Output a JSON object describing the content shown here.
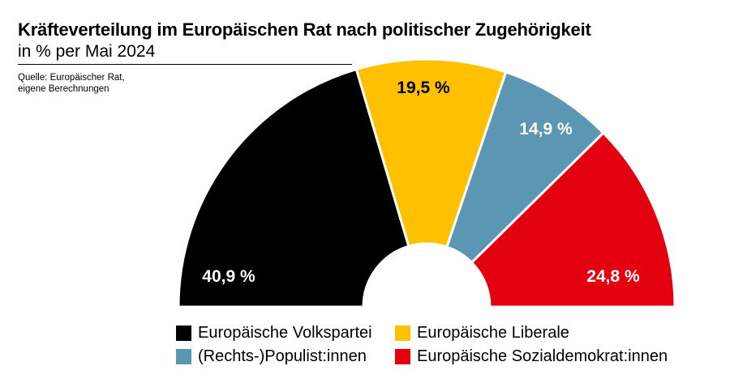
{
  "header": {
    "title": "Kräfteverteilung im Europäischen Rat nach politischer Zugehörigkeit",
    "subtitle": "in % per Mai 2024",
    "source_line1": "Quelle: Europäischer Rat,",
    "source_line2": "eigene Berechnungen"
  },
  "chart_data": {
    "type": "pie",
    "variant": "semicircle",
    "title": "Kräfteverteilung im Europäischen Rat nach politischer Zugehörigkeit",
    "subtitle": "in % per Mai 2024",
    "unit": "%",
    "categories": [
      "Europäische Volkspartei",
      "Europäische Liberale",
      "(Rechts-)Populist:innen",
      "Europäische Sozialdemokrat:innen"
    ],
    "values": [
      40.9,
      19.5,
      14.9,
      24.8
    ],
    "labels": [
      "40,9 %",
      "19,5 %",
      "14,9 %",
      "24,8 %"
    ],
    "colors": [
      "#000000",
      "#ffc000",
      "#5b96b3",
      "#e3000f"
    ],
    "label_colors": [
      "#ffffff",
      "#000000",
      "#ffffff",
      "#ffffff"
    ],
    "legend_position": "bottom"
  },
  "legend": {
    "items": [
      {
        "label": "Europäische Volkspartei",
        "color": "#000000"
      },
      {
        "label": "Europäische Liberale",
        "color": "#ffc000"
      },
      {
        "label": "(Rechts-)Populist:innen",
        "color": "#5b96b3"
      },
      {
        "label": "Europäische Sozialdemokrat:innen",
        "color": "#e3000f"
      }
    ]
  }
}
